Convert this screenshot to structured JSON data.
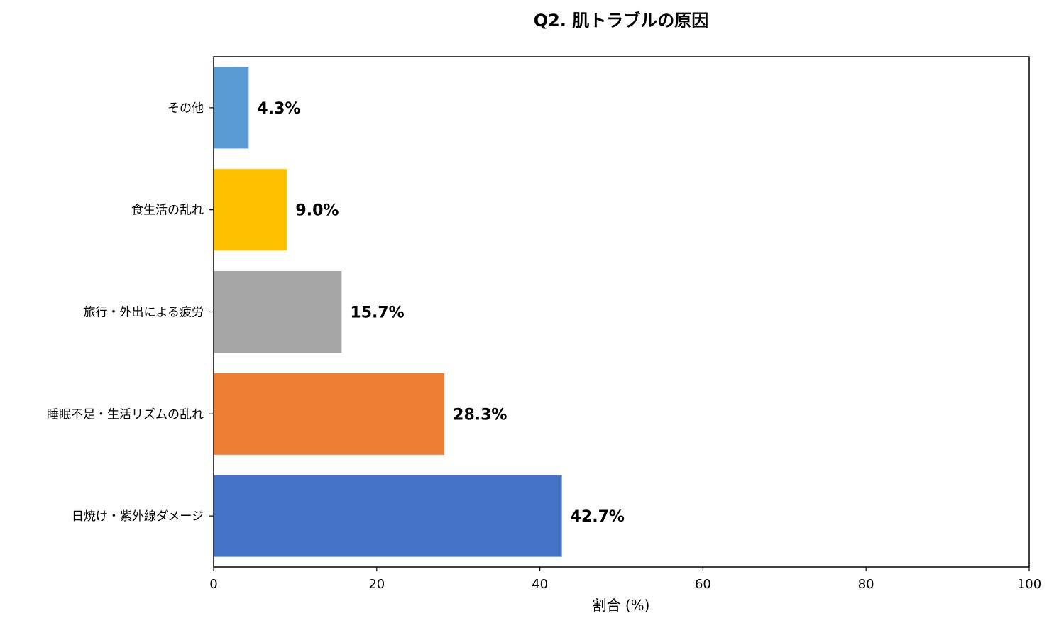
{
  "chart_data": {
    "type": "bar",
    "orientation": "horizontal",
    "title": "Q2. 肌トラブルの原因",
    "xlabel": "割合 (%)",
    "ylabel": "",
    "xlim": [
      0,
      100
    ],
    "xticks": [
      0,
      20,
      40,
      60,
      80,
      100
    ],
    "grid": false,
    "categories": [
      "日焼け・紫外線ダメージ",
      "睡眠不足・生活リズムの乱れ",
      "旅行・外出による疲労",
      "食生活の乱れ",
      "その他"
    ],
    "values": [
      42.7,
      28.3,
      15.7,
      9.0,
      4.3
    ],
    "data_labels": [
      "42.7%",
      "28.3%",
      "15.7%",
      "9.0%",
      "4.3%"
    ],
    "colors": [
      "#4472c4",
      "#ed7d31",
      "#a5a5a5",
      "#ffc000",
      "#5b9bd5"
    ]
  }
}
